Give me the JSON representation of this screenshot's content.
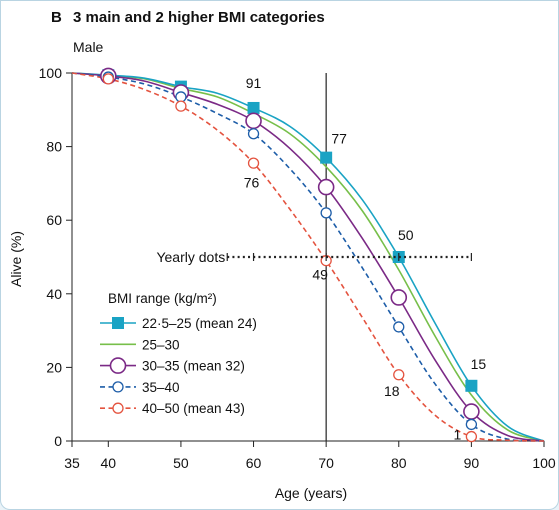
{
  "panel": {
    "letter": "B",
    "title": "3 main and 2 higher BMI categories",
    "subtitle": "Male"
  },
  "colors": {
    "bmi_22_25": "#1aa3c4",
    "bmi_25_30": "#77bf4a",
    "bmi_30_35": "#7b2a86",
    "bmi_35_40": "#1d5da8",
    "bmi_40_50": "#e4533f"
  },
  "chart_data": {
    "type": "line",
    "xlabel": "Age (years)",
    "ylabel": "Alive (%)",
    "xlim": [
      35,
      100
    ],
    "ylim": [
      0,
      100
    ],
    "x_ticks": [
      35,
      40,
      50,
      60,
      70,
      80,
      90,
      100
    ],
    "y_ticks": [
      0,
      20,
      40,
      60,
      80,
      100
    ],
    "grid": false,
    "vertical_reference_line_x": 70,
    "legend_title": "BMI range (kg/m²)",
    "legend_placement": "left-middle",
    "series": [
      {
        "name": "22·5–25 (mean 24)",
        "color": "#1aa3c4",
        "dash": "solid",
        "marker": "filled-square",
        "x": [
          35,
          40,
          45,
          50,
          55,
          60,
          65,
          70,
          75,
          80,
          85,
          90,
          95,
          100
        ],
        "y": [
          100,
          99.4,
          98.6,
          96.3,
          94.5,
          90.5,
          85.5,
          77,
          65.5,
          50,
          32,
          15,
          4,
          0
        ],
        "marker_x": [
          40,
          50,
          60,
          70,
          80,
          90
        ]
      },
      {
        "name": "25–30",
        "color": "#77bf4a",
        "dash": "solid",
        "marker": "none",
        "x": [
          35,
          40,
          45,
          50,
          55,
          60,
          65,
          70,
          75,
          80,
          85,
          90,
          95,
          100
        ],
        "y": [
          100,
          99.3,
          98.4,
          95.8,
          93.5,
          89,
          83.5,
          74.5,
          62.5,
          46.5,
          28.5,
          12.5,
          3,
          0
        ],
        "marker_x": []
      },
      {
        "name": "30–35 (mean 32)",
        "color": "#7b2a86",
        "dash": "solid",
        "marker": "open-circle-large",
        "x": [
          35,
          40,
          45,
          50,
          55,
          60,
          65,
          70,
          75,
          80,
          85,
          90,
          95,
          100
        ],
        "y": [
          100,
          99.2,
          97.8,
          94.7,
          91.5,
          87,
          79.5,
          69,
          55,
          39,
          22,
          8,
          1.5,
          0
        ],
        "marker_x": [
          40,
          50,
          60,
          70,
          80,
          90
        ]
      },
      {
        "name": "35–40",
        "color": "#1d5da8",
        "dash": "dashed",
        "marker": "open-circle-small",
        "x": [
          35,
          40,
          45,
          50,
          55,
          60,
          65,
          70,
          75,
          80,
          85,
          90,
          95,
          100
        ],
        "y": [
          100,
          98.9,
          97,
          93.5,
          89,
          83.5,
          74,
          62,
          47,
          31,
          15.5,
          4.5,
          0.5,
          0
        ],
        "marker_x": [
          40,
          50,
          60,
          70,
          80,
          90
        ]
      },
      {
        "name": "40–50 (mean 43)",
        "color": "#e4533f",
        "dash": "dashed",
        "marker": "open-circle-small",
        "x": [
          35,
          40,
          45,
          50,
          55,
          60,
          65,
          70,
          75,
          80,
          85,
          90,
          95,
          100
        ],
        "y": [
          100,
          98.4,
          95.5,
          91,
          84.5,
          75.5,
          63,
          49,
          33.5,
          18,
          7,
          1.2,
          0.2,
          0
        ],
        "marker_x": [
          40,
          50,
          60,
          70,
          80,
          90
        ]
      }
    ],
    "annotations": [
      {
        "text": "91",
        "x": 60,
        "y": 91
      },
      {
        "text": "77",
        "x": 70,
        "y": 77
      },
      {
        "text": "50",
        "x": 80,
        "y": 50
      },
      {
        "text": "15",
        "x": 90,
        "y": 15
      },
      {
        "text": "76",
        "x": 60,
        "y": 76
      },
      {
        "text": "49",
        "x": 70,
        "y": 49
      },
      {
        "text": "18",
        "x": 80,
        "y": 18
      },
      {
        "text": "1",
        "x": 90,
        "y": 1
      }
    ],
    "yearly_dots": {
      "label": "Yearly dots",
      "y": 50,
      "x_start": 55,
      "x_end": 90,
      "tick_x": [
        60,
        70,
        80,
        90
      ]
    }
  }
}
